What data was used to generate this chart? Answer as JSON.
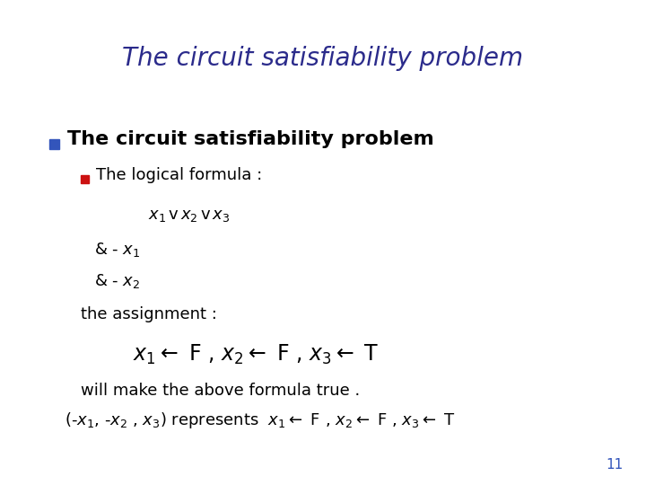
{
  "title": "The circuit satisfiability problem",
  "title_color": "#2B2B8B",
  "title_fontsize": 20,
  "bg_color": "#FFFFFF",
  "bullet1_text": "The circuit satisfiability problem",
  "bullet1_color": "#000000",
  "bullet1_fontsize": 16,
  "sub_fontsize": 13,
  "formula_fontsize": 13,
  "assign_fontsize": 17,
  "blue_bullet_color": "#3355BB",
  "red_bullet_color": "#CC1111",
  "page_number": "11",
  "page_number_color": "#3355BB"
}
